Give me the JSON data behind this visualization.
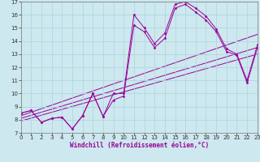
{
  "xlabel": "Windchill (Refroidissement éolien,°C)",
  "xlim": [
    0,
    23
  ],
  "ylim": [
    7,
    17
  ],
  "background_color": "#cde8ee",
  "line_color": "#990099",
  "curve1_x": [
    0,
    1,
    2,
    3,
    4,
    5,
    6,
    7,
    8,
    9,
    10,
    11,
    12,
    13,
    14,
    15,
    16,
    17,
    18,
    19,
    20,
    21,
    22,
    23
  ],
  "curve1_y": [
    8.5,
    8.7,
    7.8,
    8.1,
    8.2,
    7.3,
    8.3,
    10.0,
    8.25,
    10.0,
    10.0,
    16.0,
    15.0,
    13.8,
    14.6,
    16.8,
    17.0,
    16.5,
    15.9,
    14.9,
    13.4,
    13.0,
    11.0,
    13.7
  ],
  "curve2_x": [
    0,
    1,
    2,
    3,
    4,
    5,
    6,
    7,
    8,
    9,
    10,
    11,
    12,
    13,
    14,
    15,
    16,
    17,
    18,
    19,
    20,
    21,
    22,
    23
  ],
  "curve2_y": [
    8.5,
    8.7,
    7.8,
    8.1,
    8.2,
    7.3,
    8.3,
    10.0,
    8.25,
    9.5,
    9.8,
    15.2,
    14.7,
    13.5,
    14.2,
    16.5,
    16.8,
    16.2,
    15.6,
    14.7,
    13.2,
    12.9,
    10.8,
    13.5
  ],
  "trend1_x": [
    0,
    23
  ],
  "trend1_y": [
    8.3,
    14.5
  ],
  "trend2_x": [
    0,
    23
  ],
  "trend2_y": [
    8.1,
    13.5
  ],
  "trend3_x": [
    0,
    23
  ],
  "trend3_y": [
    7.9,
    13.0
  ],
  "xticks": [
    0,
    1,
    2,
    3,
    4,
    5,
    6,
    7,
    8,
    9,
    10,
    11,
    12,
    13,
    14,
    15,
    16,
    17,
    18,
    19,
    20,
    21,
    22,
    23
  ],
  "yticks": [
    7,
    8,
    9,
    10,
    11,
    12,
    13,
    14,
    15,
    16,
    17
  ],
  "grid_color": "#b0d8e0",
  "tick_fontsize": 5.0,
  "label_fontsize": 5.5
}
